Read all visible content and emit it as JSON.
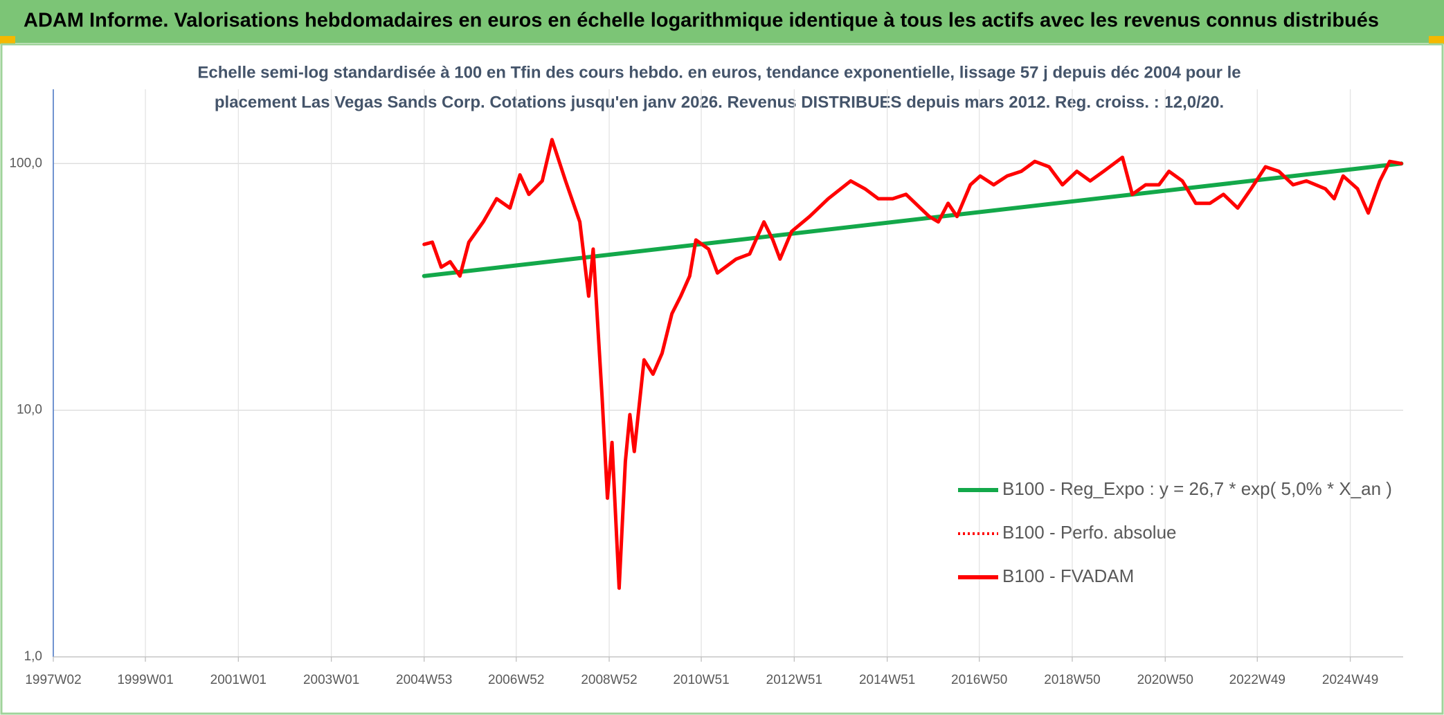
{
  "chart_data": {
    "type": "line",
    "title": "ADAM Informe. Valorisations hebdomadaires en euros en échelle logarithmique identique à tous les actifs avec les revenus connus distribués",
    "subtitle": [
      "Echelle semi-log standardisée à 100 en Tfin des cours hebdo. en euros, tendance exponentielle, lissage 57 j depuis déc 2004 pour le",
      "placement Las Vegas Sands Corp. Cotations jusqu'en janv 2026. Revenus DISTRIBUES depuis mars 2012. Reg. croiss. : 12,0/20."
    ],
    "log_y": true,
    "grid": true,
    "legend": "lower right",
    "xlim": [
      "1997W02",
      "2026W04"
    ],
    "xticks": [
      "1997W02",
      "1999W01",
      "2001W01",
      "2003W01",
      "2004W53",
      "2006W52",
      "2008W52",
      "2010W51",
      "2012W51",
      "2014W51",
      "2016W50",
      "2018W50",
      "2020W50",
      "2022W49",
      "2024W49"
    ],
    "ylim": [
      1,
      200
    ],
    "yticks": [
      {
        "value": 1,
        "label": "1,0"
      },
      {
        "value": 10,
        "label": "10,0"
      },
      {
        "value": 100,
        "label": "100,0"
      }
    ],
    "series": [
      {
        "name": "B100 - Reg_Expo : y = 26,7 * exp( 5,0% *  X_an )",
        "color": "#13a84a",
        "dash": "solid",
        "x": [
          "2004W53",
          "2026W02"
        ],
        "values": [
          35,
          100
        ]
      },
      {
        "name": "B100 - Perfo. absolue",
        "color": "#ff0000",
        "dash": "dotted",
        "x": [],
        "values": []
      },
      {
        "name": "B100 - FVADAM",
        "color": "#ff0000",
        "dash": "solid",
        "x": [
          "2004W53",
          "2005W10",
          "2005W20",
          "2005W30",
          "2005W41",
          "2005W51",
          "2006W15",
          "2006W30",
          "2006W45",
          "2007W04",
          "2007W14",
          "2007W29",
          "2007W40",
          "2008W03",
          "2008W19",
          "2008W29",
          "2008W34",
          "2008W44",
          "2008W50",
          "2009W03",
          "2009W11",
          "2009W18",
          "2009W23",
          "2009W28",
          "2009W39",
          "2009W49",
          "2010W07",
          "2010W18",
          "2010W28",
          "2010W38",
          "2010W45",
          "2011W07",
          "2011W17",
          "2011W38",
          "2012W01",
          "2012W17",
          "2012W27",
          "2012W35",
          "2012W48",
          "2013W16",
          "2013W37",
          "2014W10",
          "2014W26",
          "2014W41",
          "2015W05",
          "2015W20",
          "2015W36",
          "2015W46",
          "2016W04",
          "2016W15",
          "2016W25",
          "2016W40",
          "2016W51",
          "2017W14",
          "2017W29",
          "2017W45",
          "2018W08",
          "2018W24",
          "2018W39",
          "2019W03",
          "2019W18",
          "2019W33",
          "2020W02",
          "2020W13",
          "2020W28",
          "2020W43",
          "2021W02",
          "2021W17",
          "2021W32",
          "2021W48",
          "2022W11",
          "2022W27",
          "2022W42",
          "2023W06",
          "2023W21",
          "2023W37",
          "2023W52",
          "2024W21",
          "2024W31",
          "2024W41",
          "2025W05",
          "2025W17",
          "2025W30",
          "2025W41",
          "2026W02"
        ],
        "values": [
          47,
          48,
          38,
          40,
          35,
          48,
          58,
          72,
          66,
          90,
          75,
          85,
          125,
          85,
          58,
          29,
          45,
          11.4,
          4.4,
          7.4,
          1.9,
          6.2,
          9.6,
          6.8,
          16,
          14,
          17,
          24.6,
          29,
          35,
          49,
          45,
          36,
          41,
          43,
          58,
          49,
          41,
          53,
          61,
          72,
          85,
          79,
          72,
          72,
          75,
          66,
          61,
          58,
          69,
          61,
          82,
          89,
          82,
          89,
          93,
          102,
          97,
          82,
          93,
          85,
          93,
          106,
          75,
          82,
          82,
          93,
          85,
          69,
          69,
          75,
          66,
          79,
          97,
          93,
          82,
          85,
          79,
          72,
          89,
          79,
          63,
          85,
          102,
          100
        ]
      }
    ]
  }
}
